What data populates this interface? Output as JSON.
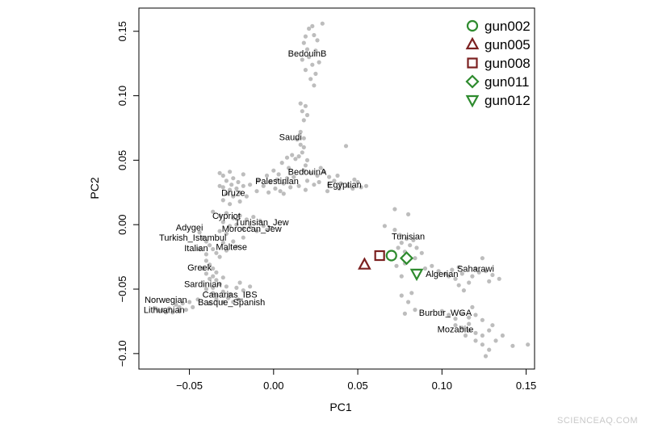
{
  "chart_data": {
    "type": "scatter",
    "xlabel": "PC1",
    "ylabel": "PC2",
    "xlim": [
      -0.08,
      0.155
    ],
    "ylim": [
      -0.112,
      0.168
    ],
    "x_ticks": [
      {
        "value": -0.05,
        "label": "−0.05"
      },
      {
        "value": 0.0,
        "label": "0.00"
      },
      {
        "value": 0.05,
        "label": "0.05"
      },
      {
        "value": 0.1,
        "label": "0.10"
      },
      {
        "value": 0.15,
        "label": "0.15"
      }
    ],
    "y_ticks": [
      {
        "value": -0.1,
        "label": "−0.10"
      },
      {
        "value": -0.05,
        "label": "−0.05"
      },
      {
        "value": 0.0,
        "label": "0.00"
      },
      {
        "value": 0.05,
        "label": "0.05"
      },
      {
        "value": 0.1,
        "label": "0.10"
      },
      {
        "value": 0.15,
        "label": "0.15"
      }
    ],
    "grid": false,
    "legend_position": "top-right",
    "reference_color": "#bdbdbd",
    "reference_points": [
      [
        0.021,
        0.152
      ],
      [
        0.023,
        0.154
      ],
      [
        0.029,
        0.156
      ],
      [
        0.019,
        0.146
      ],
      [
        0.024,
        0.147
      ],
      [
        0.018,
        0.141
      ],
      [
        0.026,
        0.143
      ],
      [
        0.02,
        0.136
      ],
      [
        0.025,
        0.135
      ],
      [
        0.021,
        0.13
      ],
      [
        0.027,
        0.126
      ],
      [
        0.017,
        0.128
      ],
      [
        0.023,
        0.124
      ],
      [
        0.019,
        0.12
      ],
      [
        0.025,
        0.117
      ],
      [
        0.022,
        0.113
      ],
      [
        0.024,
        0.108
      ],
      [
        0.016,
        0.094
      ],
      [
        0.019,
        0.092
      ],
      [
        0.017,
        0.088
      ],
      [
        0.02,
        0.085
      ],
      [
        0.018,
        0.081
      ],
      [
        0.016,
        0.072
      ],
      [
        0.018,
        0.067
      ],
      [
        0.016,
        0.062
      ],
      [
        0.014,
        0.066
      ],
      [
        0.018,
        0.06
      ],
      [
        0.017,
        0.056
      ],
      [
        0.015,
        0.053
      ],
      [
        0.013,
        0.051
      ],
      [
        0.02,
        0.05
      ],
      [
        0.019,
        0.046
      ],
      [
        0.011,
        0.054
      ],
      [
        0.008,
        0.052
      ],
      [
        0.005,
        0.048
      ],
      [
        0.009,
        0.044
      ],
      [
        0.0,
        0.042
      ],
      [
        0.003,
        0.039
      ],
      [
        -0.004,
        0.038
      ],
      [
        0.002,
        0.035
      ],
      [
        -0.002,
        0.033
      ],
      [
        0.006,
        0.032
      ],
      [
        -0.006,
        0.03
      ],
      [
        0.001,
        0.028
      ],
      [
        0.004,
        0.026
      ],
      [
        -0.003,
        0.025
      ],
      [
        -0.009,
        0.034
      ],
      [
        -0.01,
        0.026
      ],
      [
        0.008,
        0.036
      ],
      [
        0.01,
        0.029
      ],
      [
        0.006,
        0.024
      ],
      [
        0.018,
        0.042
      ],
      [
        0.022,
        0.04
      ],
      [
        0.026,
        0.038
      ],
      [
        0.02,
        0.034
      ],
      [
        0.024,
        0.031
      ],
      [
        0.015,
        0.03
      ],
      [
        0.019,
        0.027
      ],
      [
        0.027,
        0.033
      ],
      [
        0.012,
        0.037
      ],
      [
        0.028,
        0.044
      ],
      [
        0.03,
        0.041
      ],
      [
        0.033,
        0.037
      ],
      [
        0.036,
        0.034
      ],
      [
        0.04,
        0.032
      ],
      [
        0.044,
        0.03
      ],
      [
        0.048,
        0.035
      ],
      [
        0.05,
        0.033
      ],
      [
        0.047,
        0.028
      ],
      [
        0.052,
        0.029
      ],
      [
        0.033,
        0.031
      ],
      [
        0.039,
        0.028
      ],
      [
        0.043,
        0.061
      ],
      [
        0.055,
        0.03
      ],
      [
        0.032,
        0.026
      ],
      [
        0.038,
        0.038
      ],
      [
        -0.032,
        0.04
      ],
      [
        -0.03,
        0.038
      ],
      [
        -0.026,
        0.041
      ],
      [
        -0.024,
        0.036
      ],
      [
        -0.028,
        0.034
      ],
      [
        -0.025,
        0.031
      ],
      [
        -0.021,
        0.033
      ],
      [
        -0.03,
        0.029
      ],
      [
        -0.026,
        0.027
      ],
      [
        -0.022,
        0.028
      ],
      [
        -0.018,
        0.03
      ],
      [
        -0.028,
        0.024
      ],
      [
        -0.024,
        0.022
      ],
      [
        -0.02,
        0.025
      ],
      [
        -0.016,
        0.022
      ],
      [
        -0.03,
        0.019
      ],
      [
        -0.02,
        0.018
      ],
      [
        -0.026,
        0.016
      ],
      [
        -0.014,
        0.031
      ],
      [
        -0.018,
        0.039
      ],
      [
        -0.032,
        0.03
      ],
      [
        -0.036,
        0.01
      ],
      [
        -0.032,
        0.007
      ],
      [
        -0.028,
        0.009
      ],
      [
        -0.024,
        0.005
      ],
      [
        -0.02,
        0.007
      ],
      [
        -0.016,
        0.004
      ],
      [
        -0.012,
        0.006
      ],
      [
        -0.008,
        0.003
      ],
      [
        -0.03,
        0.002
      ],
      [
        -0.026,
        -0.001
      ],
      [
        -0.022,
        0.0
      ],
      [
        -0.018,
        -0.003
      ],
      [
        -0.014,
        -0.002
      ],
      [
        -0.01,
        -0.005
      ],
      [
        -0.006,
        -0.001
      ],
      [
        -0.004,
        -0.004
      ],
      [
        -0.032,
        -0.005
      ],
      [
        -0.028,
        -0.007
      ],
      [
        -0.044,
        -0.006
      ],
      [
        -0.042,
        -0.01
      ],
      [
        -0.04,
        -0.013
      ],
      [
        -0.038,
        -0.016
      ],
      [
        -0.036,
        -0.019
      ],
      [
        -0.034,
        -0.022
      ],
      [
        -0.03,
        -0.014
      ],
      [
        -0.032,
        -0.025
      ],
      [
        -0.028,
        -0.02
      ],
      [
        -0.024,
        -0.013
      ],
      [
        -0.022,
        -0.017
      ],
      [
        -0.018,
        -0.01
      ],
      [
        -0.044,
        -0.019
      ],
      [
        -0.04,
        -0.023
      ],
      [
        -0.04,
        -0.028
      ],
      [
        -0.038,
        -0.031
      ],
      [
        -0.036,
        -0.034
      ],
      [
        -0.042,
        -0.034
      ],
      [
        -0.04,
        -0.038
      ],
      [
        -0.036,
        -0.04
      ],
      [
        -0.034,
        -0.037
      ],
      [
        -0.038,
        -0.042
      ],
      [
        -0.034,
        -0.043
      ],
      [
        -0.03,
        -0.041
      ],
      [
        -0.032,
        -0.046
      ],
      [
        -0.028,
        -0.048
      ],
      [
        -0.036,
        -0.049
      ],
      [
        -0.04,
        -0.05
      ],
      [
        -0.036,
        -0.053
      ],
      [
        -0.034,
        -0.055
      ],
      [
        -0.03,
        -0.052
      ],
      [
        -0.026,
        -0.054
      ],
      [
        -0.022,
        -0.049
      ],
      [
        -0.018,
        -0.051
      ],
      [
        -0.014,
        -0.048
      ],
      [
        -0.02,
        -0.045
      ],
      [
        -0.034,
        -0.058
      ],
      [
        -0.038,
        -0.061
      ],
      [
        -0.03,
        -0.06
      ],
      [
        -0.027,
        -0.057
      ],
      [
        -0.024,
        -0.06
      ],
      [
        -0.021,
        -0.058
      ],
      [
        -0.045,
        -0.058
      ],
      [
        -0.05,
        -0.06
      ],
      [
        -0.054,
        -0.061
      ],
      [
        -0.058,
        -0.062
      ],
      [
        -0.048,
        -0.064
      ],
      [
        -0.052,
        -0.066
      ],
      [
        -0.056,
        -0.064
      ],
      [
        -0.062,
        -0.065
      ],
      [
        -0.066,
        -0.066
      ],
      [
        -0.06,
        -0.068
      ],
      [
        -0.064,
        -0.068
      ],
      [
        -0.068,
        -0.067
      ],
      [
        -0.056,
        -0.067
      ],
      [
        -0.07,
        -0.065
      ],
      [
        0.072,
        0.012
      ],
      [
        0.08,
        0.008
      ],
      [
        0.066,
        -0.001
      ],
      [
        0.072,
        -0.004
      ],
      [
        0.075,
        -0.008
      ],
      [
        0.079,
        -0.011
      ],
      [
        0.076,
        -0.014
      ],
      [
        0.081,
        -0.016
      ],
      [
        0.083,
        -0.012
      ],
      [
        0.085,
        -0.018
      ],
      [
        0.078,
        -0.021
      ],
      [
        0.088,
        -0.022
      ],
      [
        0.074,
        -0.018
      ],
      [
        0.084,
        -0.026
      ],
      [
        0.078,
        -0.03
      ],
      [
        0.073,
        -0.032
      ],
      [
        0.076,
        -0.04
      ],
      [
        0.09,
        -0.034
      ],
      [
        0.094,
        -0.032
      ],
      [
        0.098,
        -0.036
      ],
      [
        0.102,
        -0.038
      ],
      [
        0.106,
        -0.035
      ],
      [
        0.11,
        -0.033
      ],
      [
        0.104,
        -0.04
      ],
      [
        0.108,
        -0.042
      ],
      [
        0.112,
        -0.038
      ],
      [
        0.118,
        -0.04
      ],
      [
        0.122,
        -0.037
      ],
      [
        0.126,
        -0.036
      ],
      [
        0.13,
        -0.039
      ],
      [
        0.134,
        -0.042
      ],
      [
        0.128,
        -0.044
      ],
      [
        0.124,
        -0.026
      ],
      [
        0.12,
        -0.034
      ],
      [
        0.116,
        -0.045
      ],
      [
        0.11,
        -0.047
      ],
      [
        0.113,
        -0.051
      ],
      [
        0.082,
        -0.053
      ],
      [
        0.076,
        -0.055
      ],
      [
        0.08,
        -0.06
      ],
      [
        0.084,
        -0.066
      ],
      [
        0.078,
        -0.069
      ],
      [
        0.1,
        -0.067
      ],
      [
        0.104,
        -0.07
      ],
      [
        0.108,
        -0.073
      ],
      [
        0.112,
        -0.069
      ],
      [
        0.116,
        -0.072
      ],
      [
        0.12,
        -0.07
      ],
      [
        0.124,
        -0.074
      ],
      [
        0.108,
        -0.078
      ],
      [
        0.112,
        -0.08
      ],
      [
        0.116,
        -0.082
      ],
      [
        0.12,
        -0.084
      ],
      [
        0.124,
        -0.086
      ],
      [
        0.128,
        -0.082
      ],
      [
        0.12,
        -0.09
      ],
      [
        0.124,
        -0.093
      ],
      [
        0.128,
        -0.097
      ],
      [
        0.132,
        -0.09
      ],
      [
        0.136,
        -0.086
      ],
      [
        0.13,
        -0.078
      ],
      [
        0.118,
        -0.064
      ],
      [
        0.114,
        -0.086
      ],
      [
        0.142,
        -0.094
      ],
      [
        0.151,
        -0.093
      ],
      [
        0.126,
        -0.102
      ],
      [
        0.116,
        -0.077
      ]
    ],
    "population_labels": [
      {
        "text": "BedouinB",
        "x": 0.02,
        "y": 0.133
      },
      {
        "text": "Saudi",
        "x": 0.01,
        "y": 0.068
      },
      {
        "text": "BedouinA",
        "x": 0.02,
        "y": 0.041
      },
      {
        "text": "Palestinian",
        "x": 0.002,
        "y": 0.034
      },
      {
        "text": "Egyptian",
        "x": 0.042,
        "y": 0.031
      },
      {
        "text": "Druze",
        "x": -0.024,
        "y": 0.025
      },
      {
        "text": "Cypriot",
        "x": -0.028,
        "y": 0.007
      },
      {
        "text": "Tunisian_Jew",
        "x": -0.007,
        "y": 0.002
      },
      {
        "text": "Adygei",
        "x": -0.05,
        "y": -0.002
      },
      {
        "text": "Moroccan_Jew",
        "x": -0.013,
        "y": -0.003
      },
      {
        "text": "Turkish_Istambul",
        "x": -0.048,
        "y": -0.01
      },
      {
        "text": "Tunisian",
        "x": 0.08,
        "y": -0.009
      },
      {
        "text": "Italian",
        "x": -0.046,
        "y": -0.018
      },
      {
        "text": "Maltese",
        "x": -0.025,
        "y": -0.017
      },
      {
        "text": "Greek",
        "x": -0.044,
        "y": -0.033
      },
      {
        "text": "Saharawi",
        "x": 0.12,
        "y": -0.034
      },
      {
        "text": "Algerian",
        "x": 0.1,
        "y": -0.038
      },
      {
        "text": "Sardinian",
        "x": -0.042,
        "y": -0.046
      },
      {
        "text": "Canarias_IBS",
        "x": -0.026,
        "y": -0.054
      },
      {
        "text": "Norwegian",
        "x": -0.064,
        "y": -0.058
      },
      {
        "text": "Basque_Spanish",
        "x": -0.025,
        "y": -0.06
      },
      {
        "text": "Lithuanian",
        "x": -0.065,
        "y": -0.066
      },
      {
        "text": "Burbur_WGA",
        "x": 0.102,
        "y": -0.068
      },
      {
        "text": "Mozabite",
        "x": 0.108,
        "y": -0.081
      }
    ],
    "series": [
      {
        "name": "gun002",
        "marker": "circle",
        "color": "#2e8b2e",
        "x": 0.07,
        "y": -0.024
      },
      {
        "name": "gun005",
        "marker": "triangle-up",
        "color": "#7b2020",
        "x": 0.054,
        "y": -0.031
      },
      {
        "name": "gun008",
        "marker": "square",
        "color": "#7b2020",
        "x": 0.063,
        "y": -0.024
      },
      {
        "name": "gun011",
        "marker": "diamond",
        "color": "#2e8b2e",
        "x": 0.079,
        "y": -0.026
      },
      {
        "name": "gun012",
        "marker": "triangle-down",
        "color": "#2e8b2e",
        "x": 0.085,
        "y": -0.038
      }
    ]
  },
  "watermark": "SCIENCEAQ.COM"
}
